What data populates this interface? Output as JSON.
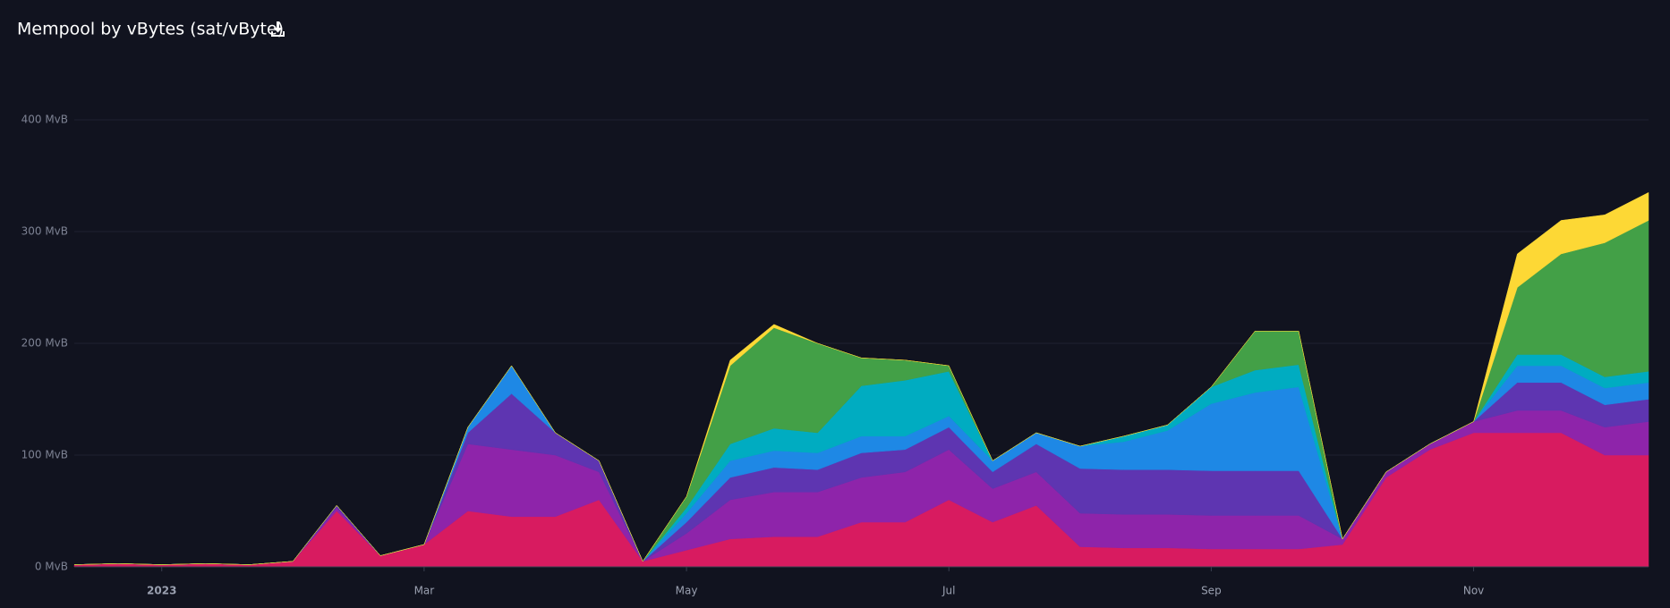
{
  "chart_data": {
    "type": "stacked_area",
    "title": "Mempool by vBytes (sat/vByte)",
    "categories": [
      null,
      null,
      "2023",
      null,
      null,
      null,
      null,
      null,
      "Mar",
      null,
      null,
      null,
      null,
      null,
      "May",
      null,
      null,
      null,
      null,
      null,
      "Jul",
      null,
      null,
      null,
      null,
      null,
      "Sep",
      null,
      null,
      null,
      null,
      null,
      "Nov",
      null,
      null,
      null,
      null
    ],
    "series": [
      {
        "color": "#d81b60",
        "values": [
          2,
          3,
          2,
          3,
          2,
          5,
          50,
          10,
          20,
          50,
          45,
          45,
          60,
          5,
          15,
          25,
          27,
          27,
          40,
          40,
          60,
          40,
          55,
          18,
          17,
          17,
          16,
          16,
          16,
          20,
          80,
          105,
          120,
          120,
          120,
          100,
          100
        ]
      },
      {
        "color": "#8e24aa",
        "values": [
          0,
          0,
          0,
          0,
          0,
          0,
          3,
          0,
          0,
          60,
          60,
          55,
          25,
          0,
          15,
          35,
          40,
          40,
          40,
          45,
          45,
          30,
          30,
          30,
          30,
          30,
          30,
          30,
          30,
          5,
          5,
          5,
          10,
          20,
          20,
          25,
          30
        ]
      },
      {
        "color": "#5e35b1",
        "values": [
          0,
          0,
          0,
          0,
          0,
          0,
          2,
          0,
          0,
          10,
          50,
          20,
          10,
          0,
          10,
          20,
          22,
          20,
          22,
          20,
          20,
          15,
          25,
          40,
          40,
          40,
          40,
          40,
          40,
          0,
          0,
          0,
          0,
          25,
          25,
          20,
          20
        ]
      },
      {
        "color": "#1e88e5",
        "values": [
          0,
          0,
          0,
          0,
          0,
          0,
          0,
          0,
          0,
          5,
          25,
          0,
          0,
          0,
          8,
          15,
          15,
          15,
          15,
          12,
          10,
          10,
          10,
          20,
          25,
          35,
          60,
          70,
          75,
          0,
          0,
          0,
          0,
          15,
          15,
          15,
          15
        ]
      },
      {
        "color": "#00acc1",
        "values": [
          0,
          0,
          0,
          0,
          0,
          0,
          0,
          0,
          0,
          0,
          0,
          0,
          0,
          0,
          5,
          15,
          20,
          18,
          45,
          50,
          40,
          0,
          0,
          0,
          5,
          5,
          15,
          20,
          20,
          0,
          0,
          0,
          0,
          10,
          10,
          10,
          10
        ]
      },
      {
        "color": "#43a047",
        "values": [
          0,
          0,
          0,
          0,
          0,
          0,
          0,
          0,
          0,
          0,
          0,
          0,
          0,
          0,
          10,
          70,
          90,
          80,
          25,
          18,
          5,
          0,
          0,
          0,
          0,
          0,
          0,
          35,
          30,
          0,
          0,
          0,
          0,
          60,
          90,
          120,
          135
        ]
      },
      {
        "color": "#fdd835",
        "values": [
          0,
          0,
          0,
          0,
          0,
          0,
          0,
          0,
          0,
          0,
          0,
          0,
          0,
          0,
          0,
          5,
          3,
          0,
          0,
          0,
          0,
          0,
          0,
          0,
          0,
          0,
          0,
          0,
          0,
          0,
          0,
          0,
          0,
          30,
          30,
          25,
          25
        ]
      }
    ],
    "ylim": [
      0,
      400
    ],
    "yticks": [
      {
        "value": 0,
        "label": "0 MvB"
      },
      {
        "value": 100,
        "label": "100 MvB"
      },
      {
        "value": 200,
        "label": "200 MvB"
      },
      {
        "value": 300,
        "label": "300 MvB"
      },
      {
        "value": 400,
        "label": "400 MvB"
      }
    ],
    "grid": true
  }
}
